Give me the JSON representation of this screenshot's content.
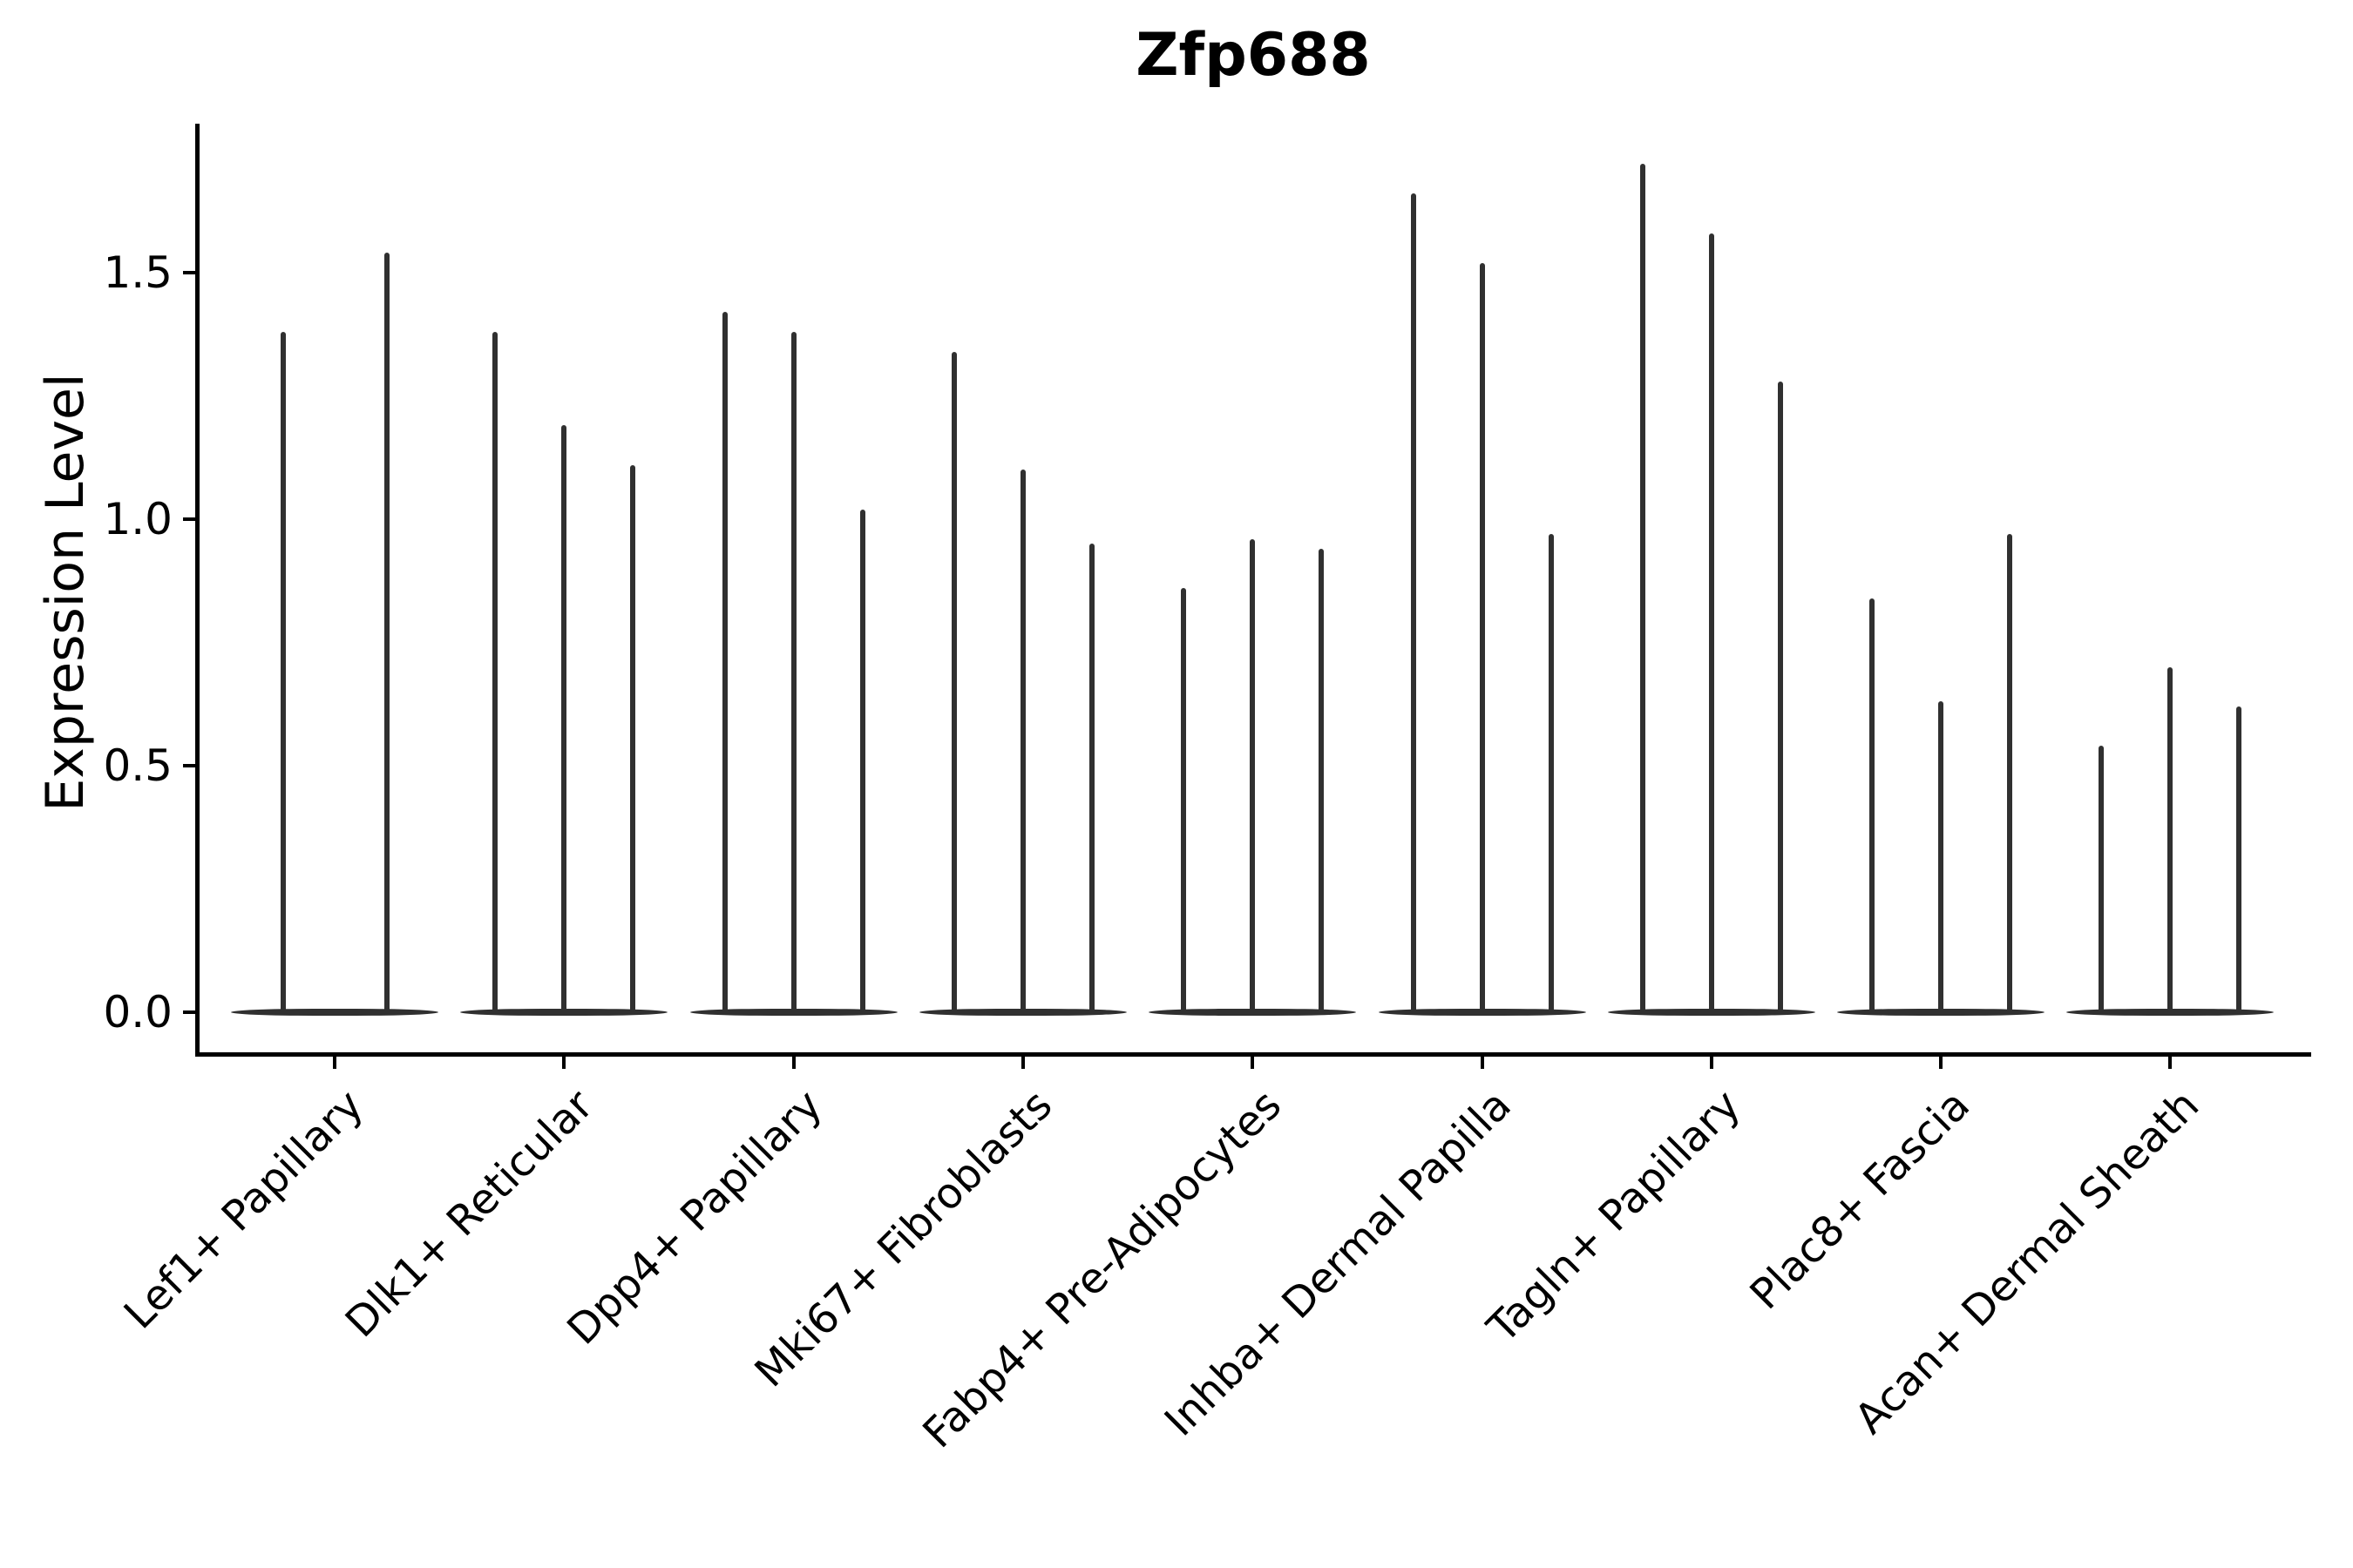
{
  "title": "Zfp688",
  "chart_data": {
    "type": "violin",
    "title": "Zfp688",
    "xlabel": "",
    "ylabel": "Expression Level",
    "ytick_labels": [
      "0.0",
      "0.5",
      "1.0",
      "1.5"
    ],
    "ylim": [
      -0.08,
      1.8
    ],
    "grid": false,
    "legend": "none",
    "style_note": "needle-thin dark gray violins with a flat merged base at expression 0; open axes (left and bottom spines only); x labels rotated 45 degrees",
    "categories": [
      "Lef1+ Papillary",
      "Dlk1+ Reticular",
      "Dpp4+ Papillary",
      "Mki67+ Fibroblasts",
      "Fabp4+ Pre-Adipocytes",
      "Inhba+ Dermal Papilla",
      "Tagln+ Papillary",
      "Plac8+ Fascia",
      "Acan+ Dermal Sheath"
    ],
    "violins": [
      {
        "category": "Lef1+ Papillary",
        "max_values": [
          1.38,
          1.54
        ]
      },
      {
        "category": "Dlk1+ Reticular",
        "max_values": [
          1.38,
          1.19,
          1.11
        ]
      },
      {
        "category": "Dpp4+ Papillary",
        "max_values": [
          1.42,
          1.38,
          1.02
        ]
      },
      {
        "category": "Mki67+ Fibroblasts",
        "max_values": [
          1.34,
          1.1,
          0.95
        ]
      },
      {
        "category": "Fabp4+ Pre-Adipocytes",
        "max_values": [
          0.86,
          0.96,
          0.94
        ]
      },
      {
        "category": "Inhba+ Dermal Papilla",
        "max_values": [
          1.66,
          1.52,
          0.97
        ]
      },
      {
        "category": "Tagln+ Papillary",
        "max_values": [
          1.72,
          1.58,
          1.28
        ]
      },
      {
        "category": "Plac8+ Fascia",
        "max_values": [
          0.84,
          0.63,
          0.97
        ]
      },
      {
        "category": "Acan+ Dermal Sheath",
        "max_values": [
          0.54,
          0.7,
          0.62
        ]
      }
    ],
    "colors": {
      "violin": "#303030",
      "axis": "#000000",
      "text": "#000000",
      "background": "#ffffff"
    }
  }
}
